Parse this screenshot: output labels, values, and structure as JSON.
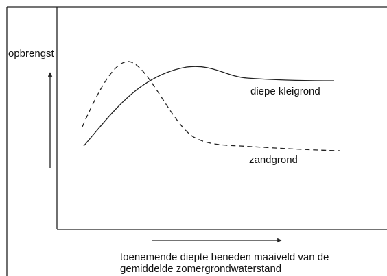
{
  "y_axis_label": "opbrengst",
  "curves": [
    {
      "label": "diepe kleigrond"
    },
    {
      "label": "zandgrond"
    }
  ],
  "x_axis_label": [
    "toenemende diepte beneden maaiveld van de",
    "gemiddelde zomergrondwaterstand"
  ]
}
